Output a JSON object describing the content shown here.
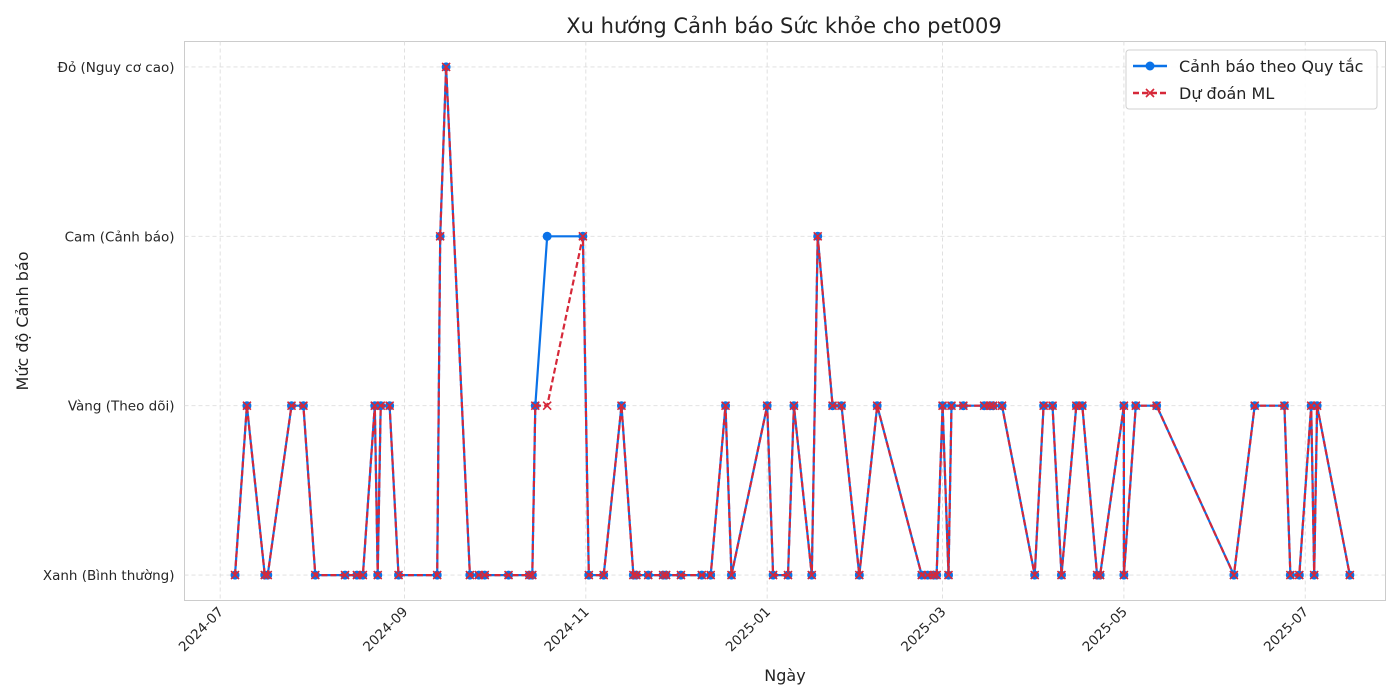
{
  "chart_data": {
    "type": "line",
    "title": "Xu hướng Cảnh báo Sức khỏe cho pet009",
    "xlabel": "Ngày",
    "ylabel": "Mức độ Cảnh báo",
    "x_ticks": [
      "2024-07",
      "2024-09",
      "2024-11",
      "2025-01",
      "2025-03",
      "2025-05",
      "2025-07"
    ],
    "y_levels": [
      "Xanh (Bình thường)",
      "Vàng (Theo dõi)",
      "Cam (Cảnh báo)",
      "Đỏ (Nguy cơ cao)"
    ],
    "ylim": [
      -0.15,
      3.15
    ],
    "xlim": [
      "2024-06-19",
      "2025-07-28"
    ],
    "grid": true,
    "legend_position": "top-right",
    "series": [
      {
        "name": "Cảnh báo theo Quy tắc",
        "color": "#0a72e8",
        "style": "solid",
        "marker": "circle",
        "points": [
          [
            "2024-07-06",
            0
          ],
          [
            "2024-07-10",
            1
          ],
          [
            "2024-07-16",
            0
          ],
          [
            "2024-07-17",
            0
          ],
          [
            "2024-07-25",
            1
          ],
          [
            "2024-07-29",
            1
          ],
          [
            "2024-08-02",
            0
          ],
          [
            "2024-08-12",
            0
          ],
          [
            "2024-08-16",
            0
          ],
          [
            "2024-08-18",
            0
          ],
          [
            "2024-08-22",
            1
          ],
          [
            "2024-08-23",
            0
          ],
          [
            "2024-08-24",
            1
          ],
          [
            "2024-08-27",
            1
          ],
          [
            "2024-08-30",
            0
          ],
          [
            "2024-09-12",
            0
          ],
          [
            "2024-09-13",
            2
          ],
          [
            "2024-09-15",
            3
          ],
          [
            "2024-09-23",
            0
          ],
          [
            "2024-09-26",
            0
          ],
          [
            "2024-09-28",
            0
          ],
          [
            "2024-10-06",
            0
          ],
          [
            "2024-10-13",
            0
          ],
          [
            "2024-10-14",
            0
          ],
          [
            "2024-10-15",
            1
          ],
          [
            "2024-10-19",
            2
          ],
          [
            "2024-10-31",
            2
          ],
          [
            "2024-11-02",
            0
          ],
          [
            "2024-11-07",
            0
          ],
          [
            "2024-11-13",
            1
          ],
          [
            "2024-11-17",
            0
          ],
          [
            "2024-11-18",
            0
          ],
          [
            "2024-11-22",
            0
          ],
          [
            "2024-11-27",
            0
          ],
          [
            "2024-11-28",
            0
          ],
          [
            "2024-12-03",
            0
          ],
          [
            "2024-12-10",
            0
          ],
          [
            "2024-12-13",
            0
          ],
          [
            "2024-12-18",
            1
          ],
          [
            "2024-12-20",
            0
          ],
          [
            "2025-01-01",
            1
          ],
          [
            "2025-01-03",
            0
          ],
          [
            "2025-01-08",
            0
          ],
          [
            "2025-01-10",
            1
          ],
          [
            "2025-01-16",
            0
          ],
          [
            "2025-01-18",
            2
          ],
          [
            "2025-01-23",
            1
          ],
          [
            "2025-01-26",
            1
          ],
          [
            "2025-02-01",
            0
          ],
          [
            "2025-02-07",
            1
          ],
          [
            "2025-02-22",
            0
          ],
          [
            "2025-02-24",
            0
          ],
          [
            "2025-02-26",
            0
          ],
          [
            "2025-02-27",
            0
          ],
          [
            "2025-03-01",
            1
          ],
          [
            "2025-03-03",
            0
          ],
          [
            "2025-03-04",
            1
          ],
          [
            "2025-03-08",
            1
          ],
          [
            "2025-03-15",
            1
          ],
          [
            "2025-03-17",
            1
          ],
          [
            "2025-03-18",
            1
          ],
          [
            "2025-03-21",
            1
          ],
          [
            "2025-04-01",
            0
          ],
          [
            "2025-04-04",
            1
          ],
          [
            "2025-04-07",
            1
          ],
          [
            "2025-04-10",
            0
          ],
          [
            "2025-04-15",
            1
          ],
          [
            "2025-04-17",
            1
          ],
          [
            "2025-04-22",
            0
          ],
          [
            "2025-04-23",
            0
          ],
          [
            "2025-05-01",
            1
          ],
          [
            "2025-05-01",
            0
          ],
          [
            "2025-05-05",
            1
          ],
          [
            "2025-05-12",
            1
          ],
          [
            "2025-06-07",
            0
          ],
          [
            "2025-06-14",
            1
          ],
          [
            "2025-06-24",
            1
          ],
          [
            "2025-06-26",
            0
          ],
          [
            "2025-06-29",
            0
          ],
          [
            "2025-07-03",
            1
          ],
          [
            "2025-07-04",
            0
          ],
          [
            "2025-07-05",
            1
          ],
          [
            "2025-07-16",
            0
          ]
        ]
      },
      {
        "name": "Dự đoán ML",
        "color": "#d62839",
        "style": "dashed",
        "marker": "x",
        "points": [
          [
            "2024-07-06",
            0
          ],
          [
            "2024-07-10",
            1
          ],
          [
            "2024-07-16",
            0
          ],
          [
            "2024-07-17",
            0
          ],
          [
            "2024-07-25",
            1
          ],
          [
            "2024-07-29",
            1
          ],
          [
            "2024-08-02",
            0
          ],
          [
            "2024-08-12",
            0
          ],
          [
            "2024-08-16",
            0
          ],
          [
            "2024-08-18",
            0
          ],
          [
            "2024-08-22",
            1
          ],
          [
            "2024-08-23",
            0
          ],
          [
            "2024-08-24",
            1
          ],
          [
            "2024-08-27",
            1
          ],
          [
            "2024-08-30",
            0
          ],
          [
            "2024-09-12",
            0
          ],
          [
            "2024-09-13",
            2
          ],
          [
            "2024-09-15",
            3
          ],
          [
            "2024-09-23",
            0
          ],
          [
            "2024-09-26",
            0
          ],
          [
            "2024-09-28",
            0
          ],
          [
            "2024-10-06",
            0
          ],
          [
            "2024-10-13",
            0
          ],
          [
            "2024-10-14",
            0
          ],
          [
            "2024-10-15",
            1
          ],
          [
            "2024-10-19",
            1
          ],
          [
            "2024-10-31",
            2
          ],
          [
            "2024-11-02",
            0
          ],
          [
            "2024-11-07",
            0
          ],
          [
            "2024-11-13",
            1
          ],
          [
            "2024-11-17",
            0
          ],
          [
            "2024-11-18",
            0
          ],
          [
            "2024-11-22",
            0
          ],
          [
            "2024-11-27",
            0
          ],
          [
            "2024-11-28",
            0
          ],
          [
            "2024-12-03",
            0
          ],
          [
            "2024-12-10",
            0
          ],
          [
            "2024-12-13",
            0
          ],
          [
            "2024-12-18",
            1
          ],
          [
            "2024-12-20",
            0
          ],
          [
            "2025-01-01",
            1
          ],
          [
            "2025-01-03",
            0
          ],
          [
            "2025-01-08",
            0
          ],
          [
            "2025-01-10",
            1
          ],
          [
            "2025-01-16",
            0
          ],
          [
            "2025-01-18",
            2
          ],
          [
            "2025-01-23",
            1
          ],
          [
            "2025-01-26",
            1
          ],
          [
            "2025-02-01",
            0
          ],
          [
            "2025-02-07",
            1
          ],
          [
            "2025-02-22",
            0
          ],
          [
            "2025-02-24",
            0
          ],
          [
            "2025-02-26",
            0
          ],
          [
            "2025-02-27",
            0
          ],
          [
            "2025-03-01",
            1
          ],
          [
            "2025-03-03",
            0
          ],
          [
            "2025-03-04",
            1
          ],
          [
            "2025-03-08",
            1
          ],
          [
            "2025-03-15",
            1
          ],
          [
            "2025-03-17",
            1
          ],
          [
            "2025-03-18",
            1
          ],
          [
            "2025-03-21",
            1
          ],
          [
            "2025-04-01",
            0
          ],
          [
            "2025-04-04",
            1
          ],
          [
            "2025-04-07",
            1
          ],
          [
            "2025-04-10",
            0
          ],
          [
            "2025-04-15",
            1
          ],
          [
            "2025-04-17",
            1
          ],
          [
            "2025-04-22",
            0
          ],
          [
            "2025-04-23",
            0
          ],
          [
            "2025-05-01",
            1
          ],
          [
            "2025-05-01",
            0
          ],
          [
            "2025-05-05",
            1
          ],
          [
            "2025-05-12",
            1
          ],
          [
            "2025-06-07",
            0
          ],
          [
            "2025-06-14",
            1
          ],
          [
            "2025-06-24",
            1
          ],
          [
            "2025-06-26",
            0
          ],
          [
            "2025-06-29",
            0
          ],
          [
            "2025-07-03",
            1
          ],
          [
            "2025-07-04",
            0
          ],
          [
            "2025-07-05",
            1
          ],
          [
            "2025-07-16",
            0
          ]
        ]
      }
    ]
  }
}
